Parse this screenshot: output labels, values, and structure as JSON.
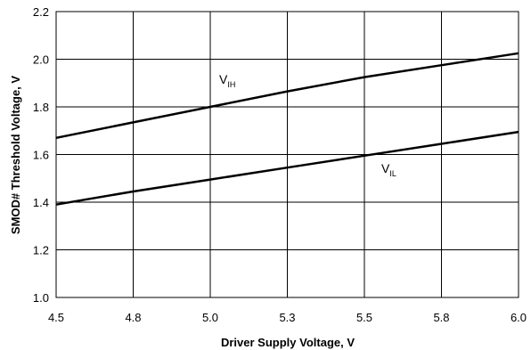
{
  "chart_data": {
    "type": "line",
    "title": "",
    "xlabel": "Driver Supply Voltage, V",
    "ylabel": "SMOD# Threshold Voltage, V",
    "xlim": [
      4.5,
      6.0
    ],
    "ylim": [
      1.0,
      2.2
    ],
    "x_ticks": [
      "4.5",
      "4.8",
      "5.0",
      "5.3",
      "5.5",
      "5.8",
      "6.0"
    ],
    "y_ticks": [
      "1.0",
      "1.2",
      "1.4",
      "1.6",
      "1.8",
      "2.0",
      "2.2"
    ],
    "grid": true,
    "legend": "none",
    "series": [
      {
        "name": "VIH",
        "label_main": "V",
        "label_sub": "IH",
        "x": [
          4.5,
          4.75,
          5.0,
          5.25,
          5.5,
          5.75,
          6.0
        ],
        "y": [
          1.67,
          1.735,
          1.8,
          1.865,
          1.925,
          1.975,
          2.025
        ]
      },
      {
        "name": "VIL",
        "label_main": "V",
        "label_sub": "IL",
        "x": [
          4.5,
          4.75,
          5.0,
          5.25,
          5.5,
          5.75,
          6.0
        ],
        "y": [
          1.39,
          1.445,
          1.495,
          1.545,
          1.595,
          1.645,
          1.695
        ]
      }
    ]
  }
}
